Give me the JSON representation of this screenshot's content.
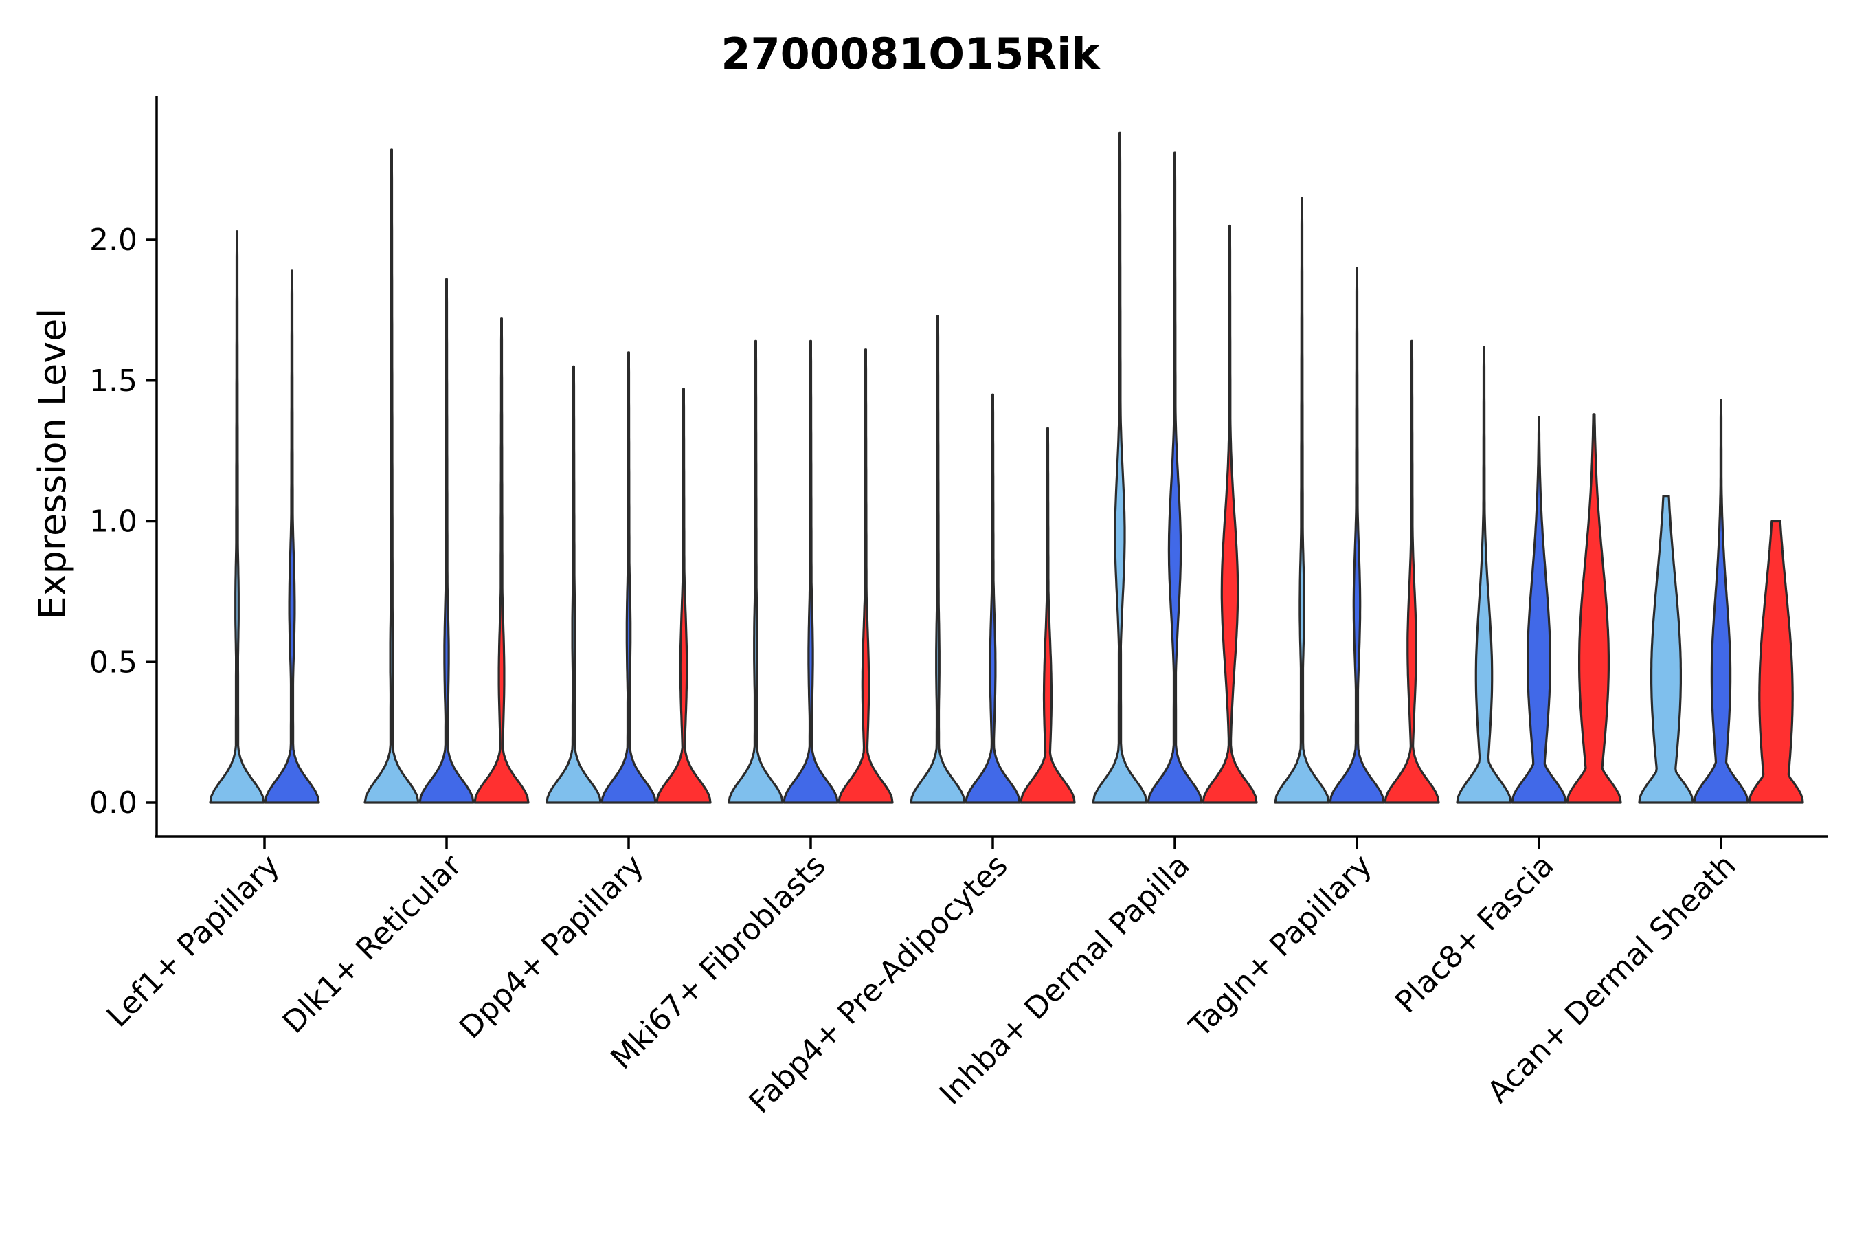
{
  "chart_data": {
    "type": "violin",
    "title": "2700081O15Rik",
    "xlabel": "",
    "ylabel": "Expression Level",
    "ylim": [
      -0.12,
      2.5
    ],
    "yticks": [
      0.0,
      0.5,
      1.0,
      1.5,
      2.0
    ],
    "ytick_labels": [
      "0.0",
      "0.5",
      "1.0",
      "1.5",
      "2.0"
    ],
    "colors": [
      "#7fbfed",
      "#4169e8",
      "#ff3030"
    ],
    "categories": [
      "Lef1+ Papillary",
      "Dlk1+ Reticular",
      "Dpp4+ Papillary",
      "Mki67+ Fibroblasts",
      "Fabp4+ Pre-Adipocytes",
      "Inhba+ Dermal Papilla",
      "Tagln+ Papillary",
      "Plac8+ Fascia",
      "Acan+ Dermal Sheath"
    ],
    "groups": [
      {
        "category": "Lef1+ Papillary",
        "violins": [
          {
            "color_index": 0,
            "max": 2.03,
            "secondary_mode": 0.7,
            "tail_width": 0.06
          },
          {
            "color_index": 1,
            "max": 1.89,
            "secondary_mode": 0.7,
            "tail_width": 0.1
          }
        ]
      },
      {
        "category": "Dlk1+ Reticular",
        "violins": [
          {
            "color_index": 0,
            "max": 2.32,
            "secondary_mode": 0.52,
            "tail_width": 0.05
          },
          {
            "color_index": 1,
            "max": 1.86,
            "secondary_mode": 0.52,
            "tail_width": 0.08
          },
          {
            "color_index": 2,
            "max": 1.72,
            "secondary_mode": 0.45,
            "tail_width": 0.1
          }
        ]
      },
      {
        "category": "Dpp4+ Papillary",
        "violins": [
          {
            "color_index": 0,
            "max": 1.55,
            "secondary_mode": 0.6,
            "tail_width": 0.05
          },
          {
            "color_index": 1,
            "max": 1.6,
            "secondary_mode": 0.6,
            "tail_width": 0.07
          },
          {
            "color_index": 2,
            "max": 1.47,
            "secondary_mode": 0.48,
            "tail_width": 0.12
          }
        ]
      },
      {
        "category": "Mki67+ Fibroblasts",
        "violins": [
          {
            "color_index": 0,
            "max": 1.64,
            "secondary_mode": 0.55,
            "tail_width": 0.06
          },
          {
            "color_index": 1,
            "max": 1.64,
            "secondary_mode": 0.52,
            "tail_width": 0.08
          },
          {
            "color_index": 2,
            "max": 1.61,
            "secondary_mode": 0.42,
            "tail_width": 0.12
          }
        ]
      },
      {
        "category": "Fabp4+ Pre-Adipocytes",
        "violins": [
          {
            "color_index": 0,
            "max": 1.73,
            "secondary_mode": 0.5,
            "tail_width": 0.06
          },
          {
            "color_index": 1,
            "max": 1.45,
            "secondary_mode": 0.48,
            "tail_width": 0.1
          },
          {
            "color_index": 2,
            "max": 1.33,
            "secondary_mode": 0.38,
            "tail_width": 0.14
          }
        ]
      },
      {
        "category": "Inhba+ Dermal Papilla",
        "violins": [
          {
            "color_index": 0,
            "max": 2.38,
            "secondary_mode": 0.95,
            "tail_width": 0.18
          },
          {
            "color_index": 1,
            "max": 2.31,
            "secondary_mode": 0.9,
            "tail_width": 0.22
          },
          {
            "color_index": 2,
            "max": 2.05,
            "secondary_mode": 0.75,
            "tail_width": 0.3
          }
        ]
      },
      {
        "category": "Tagln+ Papillary",
        "violins": [
          {
            "color_index": 0,
            "max": 2.15,
            "secondary_mode": 0.7,
            "tail_width": 0.08
          },
          {
            "color_index": 1,
            "max": 1.9,
            "secondary_mode": 0.7,
            "tail_width": 0.12
          },
          {
            "color_index": 2,
            "max": 1.64,
            "secondary_mode": 0.55,
            "tail_width": 0.16
          }
        ]
      },
      {
        "category": "Plac8+ Fascia",
        "violins": [
          {
            "color_index": 0,
            "max": 1.62,
            "secondary_mode": 0.45,
            "tail_width": 0.3
          },
          {
            "color_index": 1,
            "max": 1.37,
            "secondary_mode": 0.5,
            "tail_width": 0.42
          },
          {
            "color_index": 2,
            "max": 1.38,
            "secondary_mode": 0.5,
            "tail_width": 0.55
          }
        ]
      },
      {
        "category": "Acan+ Dermal Sheath",
        "violins": [
          {
            "color_index": 0,
            "max": 1.09,
            "secondary_mode": 0.45,
            "tail_width": 0.55
          },
          {
            "color_index": 1,
            "max": 1.43,
            "secondary_mode": 0.45,
            "tail_width": 0.35
          },
          {
            "color_index": 2,
            "max": 1.0,
            "secondary_mode": 0.38,
            "tail_width": 0.62
          }
        ]
      }
    ]
  }
}
